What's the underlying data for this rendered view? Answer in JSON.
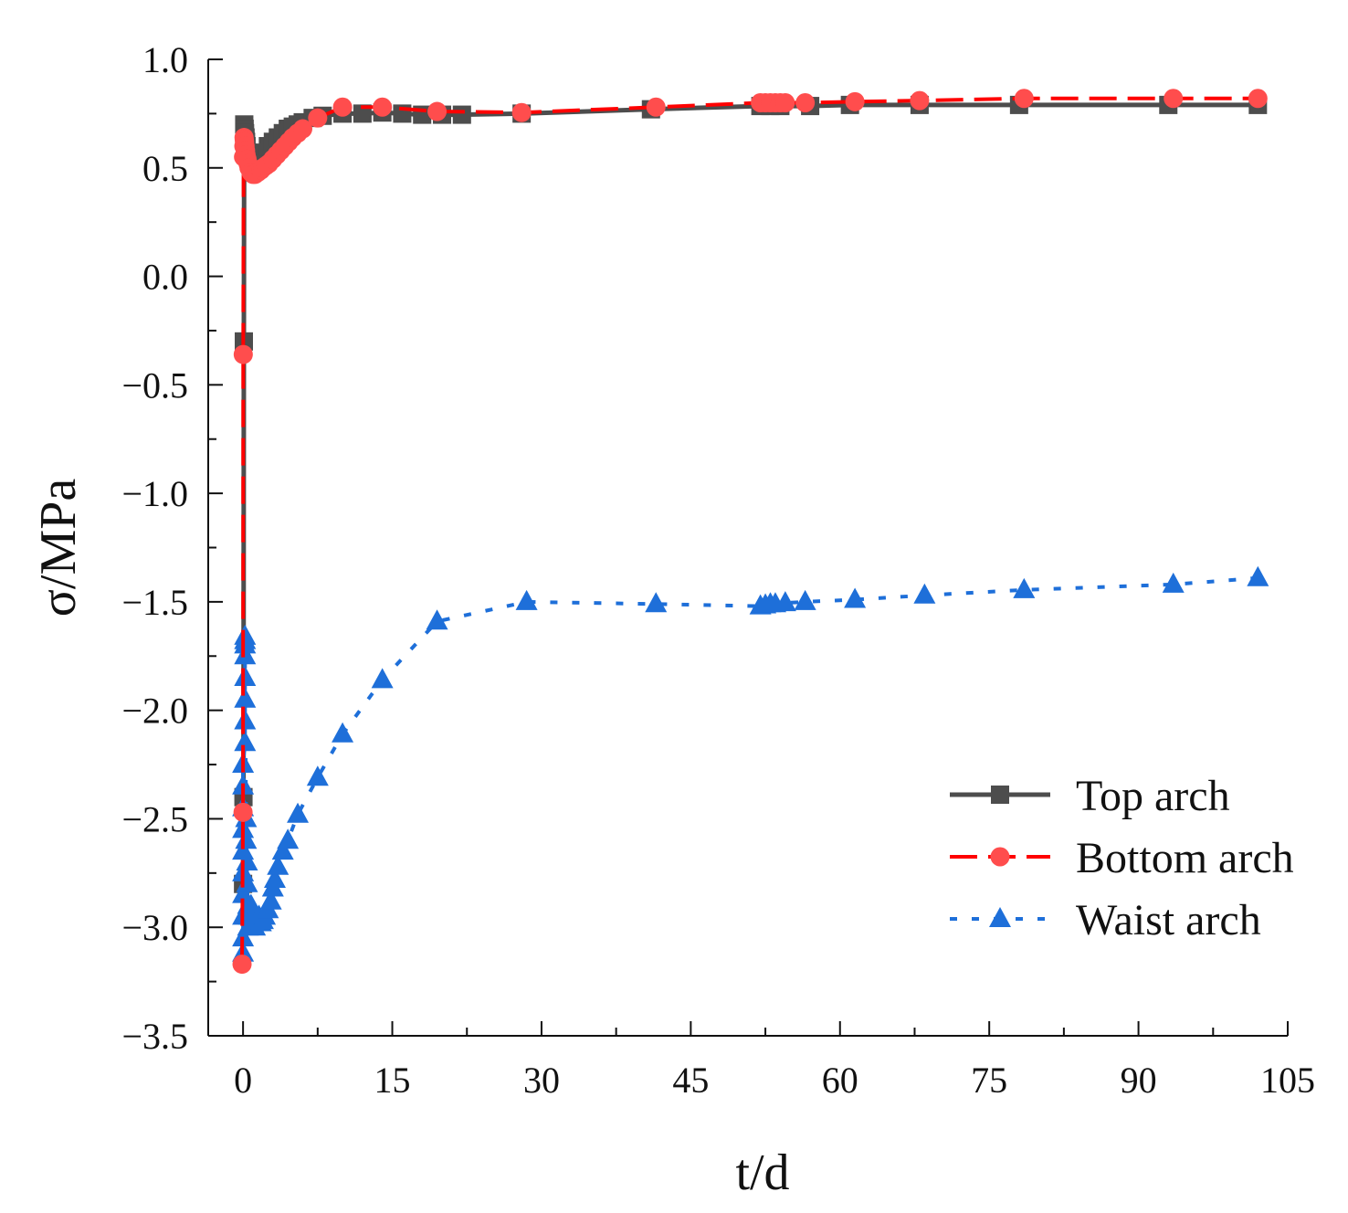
{
  "chart_data": {
    "type": "line",
    "title": "",
    "xlabel": "t/d",
    "ylabel": "σ/MPa",
    "xlim": [
      -3.5,
      105
    ],
    "ylim": [
      -3.5,
      1.0
    ],
    "x_ticks": [
      0,
      15,
      30,
      45,
      60,
      75,
      90,
      105
    ],
    "x_tick_labels": [
      "0",
      "15",
      "30",
      "45",
      "60",
      "75",
      "90",
      "105"
    ],
    "y_ticks": [
      1.0,
      0.5,
      0.0,
      -0.5,
      -1.0,
      -1.5,
      -2.0,
      -2.5,
      -3.0,
      -3.5
    ],
    "y_tick_labels": [
      "1.0",
      "0.5",
      "0.0",
      "−0.5",
      "−1.0",
      "−1.5",
      "−2.0",
      "−2.5",
      "−3.0",
      "−3.5"
    ],
    "grid": false,
    "legend_position": "lower-right",
    "series": [
      {
        "name": "Top arch",
        "color": "#4d4d4d",
        "marker": "square",
        "line_style": "solid",
        "x": [
          0,
          0.04,
          0.08,
          0.12,
          0.16,
          0.2,
          0.25,
          0.3,
          0.35,
          0.5,
          0.7,
          1.0,
          1.3,
          1.6,
          2.0,
          2.5,
          3.0,
          3.5,
          4.0,
          4.5,
          5.0,
          5.5,
          6.0,
          7.0,
          8.0,
          10.0,
          12.0,
          14.0,
          16.0,
          18.0,
          20.0,
          22.0,
          28.0,
          41.0,
          52.0,
          53.0,
          54.0,
          57.0,
          61.0,
          68.0,
          78.0,
          93.0,
          102.0
        ],
        "y": [
          -2.8,
          -2.4,
          -0.3,
          0.7,
          0.68,
          0.66,
          0.64,
          0.62,
          0.6,
          0.57,
          0.55,
          0.54,
          0.54,
          0.55,
          0.57,
          0.6,
          0.62,
          0.64,
          0.66,
          0.68,
          0.69,
          0.7,
          0.71,
          0.73,
          0.74,
          0.75,
          0.75,
          0.755,
          0.75,
          0.745,
          0.745,
          0.745,
          0.75,
          0.77,
          0.785,
          0.785,
          0.785,
          0.785,
          0.79,
          0.79,
          0.79,
          0.79,
          0.79
        ]
      },
      {
        "name": "Bottom arch",
        "color": "#ff0000",
        "marker_color": "#ff4d4d",
        "marker": "circle",
        "line_style": "dashed",
        "x": [
          -0.1,
          0,
          0.02,
          0.05,
          0.08,
          0.1,
          0.12,
          0.15,
          0.2,
          0.25,
          0.3,
          0.4,
          0.5,
          0.6,
          0.8,
          1.0,
          1.2,
          1.5,
          1.8,
          2.0,
          2.3,
          2.6,
          3.0,
          3.4,
          3.8,
          4.2,
          4.6,
          5.0,
          5.5,
          6.0,
          7.5,
          10.0,
          14.0,
          19.5,
          28.0,
          41.5,
          52.0,
          52.5,
          53.0,
          53.5,
          54.0,
          54.5,
          56.5,
          61.5,
          68.0,
          78.5,
          93.5,
          102.0
        ],
        "y": [
          -3.17,
          -2.47,
          -0.36,
          0.55,
          0.6,
          0.64,
          0.63,
          0.62,
          0.6,
          0.58,
          0.56,
          0.54,
          0.52,
          0.5,
          0.48,
          0.47,
          0.47,
          0.48,
          0.49,
          0.5,
          0.51,
          0.52,
          0.54,
          0.56,
          0.58,
          0.6,
          0.62,
          0.64,
          0.66,
          0.68,
          0.73,
          0.78,
          0.78,
          0.76,
          0.755,
          0.78,
          0.8,
          0.8,
          0.8,
          0.8,
          0.8,
          0.8,
          0.8,
          0.805,
          0.81,
          0.82,
          0.82,
          0.82
        ]
      },
      {
        "name": "Waist arch",
        "color": "#1e6fd9",
        "marker": "triangle",
        "line_style": "dotted",
        "x": [
          0,
          0,
          0,
          0,
          0,
          0,
          0,
          0,
          0,
          0,
          0.2,
          0.2,
          0.2,
          0.2,
          0.2,
          0.2,
          0.2,
          0.2,
          0.3,
          0.3,
          0.4,
          0.4,
          0.5,
          0.5,
          0.6,
          0.8,
          1.0,
          1.2,
          1.4,
          1.6,
          1.8,
          2.0,
          2.2,
          2.5,
          2.8,
          3.0,
          3.2,
          3.5,
          4.0,
          4.5,
          5.5,
          7.5,
          10.0,
          14.0,
          19.5,
          28.5,
          41.5,
          52.0,
          52.5,
          53.0,
          53.5,
          54.5,
          56.5,
          61.5,
          68.5,
          78.5,
          93.5,
          102.0
        ],
        "y": [
          -3.12,
          -3.05,
          -2.95,
          -2.85,
          -2.75,
          -2.65,
          -2.55,
          -2.45,
          -2.35,
          -2.25,
          -2.15,
          -2.05,
          -1.95,
          -1.85,
          -1.75,
          -1.7,
          -1.68,
          -1.66,
          -2.5,
          -2.6,
          -2.7,
          -2.8,
          -2.9,
          -3.0,
          -2.95,
          -2.9,
          -2.95,
          -3.0,
          -2.97,
          -2.95,
          -2.98,
          -2.97,
          -2.95,
          -2.92,
          -2.88,
          -2.82,
          -2.78,
          -2.72,
          -2.65,
          -2.6,
          -2.48,
          -2.31,
          -2.11,
          -1.86,
          -1.59,
          -1.5,
          -1.51,
          -1.52,
          -1.515,
          -1.51,
          -1.51,
          -1.505,
          -1.5,
          -1.49,
          -1.47,
          -1.445,
          -1.42,
          -1.39
        ]
      }
    ]
  }
}
